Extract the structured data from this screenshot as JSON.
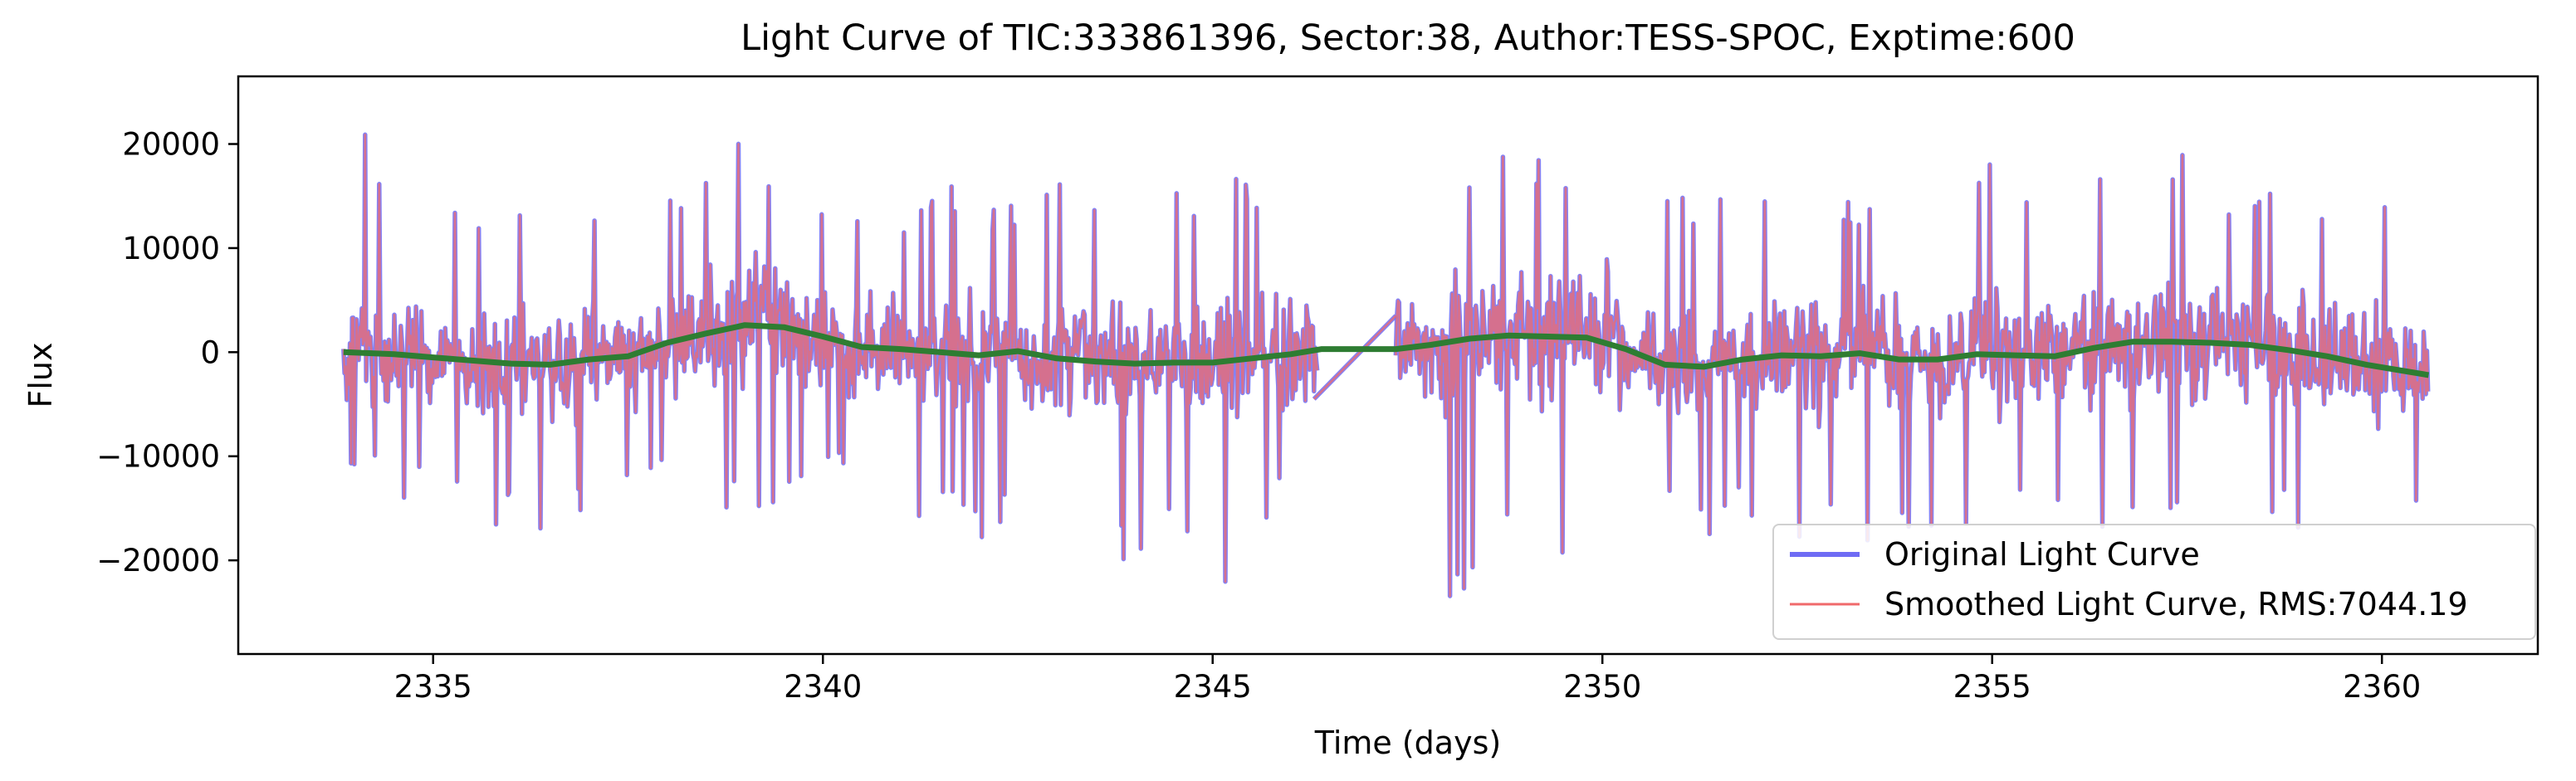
{
  "chart_data": {
    "type": "line",
    "title": "Light Curve of TIC:333861396, Sector:38, Author:TESS-SPOC, Exptime:600",
    "xlabel": "Time (days)",
    "ylabel": "Flux",
    "xlim": [
      2332.5,
      2362.0
    ],
    "ylim": [
      -29000,
      26500
    ],
    "xticks": [
      2335,
      2340,
      2345,
      2350,
      2355,
      2360
    ],
    "xtick_labels": [
      "2335",
      "2340",
      "2345",
      "2350",
      "2355",
      "2360"
    ],
    "yticks": [
      20000,
      10000,
      0,
      -10000,
      -20000
    ],
    "ytick_labels": [
      "20000",
      "10000",
      "0",
      "−10000",
      "−20000"
    ],
    "grid": false,
    "legend_position": "lower-right",
    "data_gap": [
      2346.4,
      2347.35
    ],
    "series": [
      {
        "name": "Original Light Curve",
        "color": "#6f6cf4",
        "x_range": [
          2333.85,
          2360.6
        ],
        "cadence_days": 0.00694,
        "noise_envelope": [
          [
            2333.9,
            -11000,
            12500
          ],
          [
            2334.0,
            -12000,
            24000
          ],
          [
            2334.5,
            -14000,
            18000
          ],
          [
            2335.0,
            -15000,
            13000
          ],
          [
            2335.5,
            -16000,
            16000
          ],
          [
            2336.0,
            -17500,
            14000
          ],
          [
            2336.5,
            -18000,
            17000
          ],
          [
            2337.0,
            -17000,
            15000
          ],
          [
            2337.5,
            -15000,
            14000
          ],
          [
            2338.0,
            -13000,
            17000
          ],
          [
            2338.5,
            -14000,
            20000
          ],
          [
            2339.0,
            -16000,
            23500
          ],
          [
            2339.5,
            -15000,
            19000
          ],
          [
            2340.0,
            -10000,
            14000
          ],
          [
            2340.5,
            -14000,
            16000
          ],
          [
            2341.0,
            -17000,
            15000
          ],
          [
            2341.5,
            -15500,
            17000
          ],
          [
            2342.0,
            -18000,
            16500
          ],
          [
            2342.5,
            -16000,
            14000
          ],
          [
            2343.0,
            -19000,
            16500
          ],
          [
            2343.5,
            -18000,
            15000
          ],
          [
            2344.0,
            -22000,
            17000
          ],
          [
            2344.5,
            -19000,
            16000
          ],
          [
            2345.0,
            -26000,
            17500
          ],
          [
            2345.5,
            -17000,
            17500
          ],
          [
            2346.0,
            -15000,
            19000
          ],
          [
            2346.35,
            -10000,
            17000
          ],
          [
            2347.4,
            -13000,
            16000
          ],
          [
            2347.8,
            -21000,
            13000
          ],
          [
            2348.2,
            -26500,
            17000
          ],
          [
            2348.6,
            -17000,
            21000
          ],
          [
            2349.0,
            -16000,
            22500
          ],
          [
            2349.5,
            -20000,
            19000
          ],
          [
            2350.0,
            -22000,
            17000
          ],
          [
            2350.5,
            -19000,
            16000
          ],
          [
            2351.0,
            -17000,
            15000
          ],
          [
            2351.5,
            -18000,
            15000
          ],
          [
            2352.0,
            -16000,
            17000
          ],
          [
            2352.5,
            -19000,
            17500
          ],
          [
            2353.0,
            -17000,
            15000
          ],
          [
            2353.5,
            -19000,
            16000
          ],
          [
            2354.0,
            -18000,
            18000
          ],
          [
            2354.5,
            -17000,
            17000
          ],
          [
            2355.0,
            -17500,
            19000
          ],
          [
            2355.5,
            -16000,
            17000
          ],
          [
            2356.0,
            -18000,
            15000
          ],
          [
            2356.5,
            -20000,
            18000
          ],
          [
            2357.0,
            -18000,
            19000
          ],
          [
            2357.5,
            -16000,
            19500
          ],
          [
            2358.0,
            -18000,
            17000
          ],
          [
            2358.5,
            -17000,
            18000
          ],
          [
            2359.0,
            -18000,
            17000
          ],
          [
            2359.35,
            -22500,
            17000
          ],
          [
            2359.8,
            -18000,
            16000
          ],
          [
            2360.2,
            -17000,
            15000
          ],
          [
            2360.6,
            -17000,
            15000
          ]
        ],
        "gap_connector": [
          [
            2346.3,
            -4500
          ],
          [
            2347.35,
            3500
          ]
        ]
      },
      {
        "name": "Smoothed Light Curve, RMS:7044.19",
        "color": "#f0696b",
        "note_visible": "follows the original light curve closely"
      },
      {
        "name": "",
        "color": "#2e7d32",
        "points": [
          [
            2333.85,
            0
          ],
          [
            2334.5,
            -200
          ],
          [
            2335.0,
            -500
          ],
          [
            2335.5,
            -800
          ],
          [
            2336.0,
            -1100
          ],
          [
            2336.5,
            -1200
          ],
          [
            2337.0,
            -700
          ],
          [
            2337.5,
            -400
          ],
          [
            2338.0,
            900
          ],
          [
            2338.5,
            1800
          ],
          [
            2339.0,
            2600
          ],
          [
            2339.5,
            2400
          ],
          [
            2340.0,
            1500
          ],
          [
            2340.5,
            500
          ],
          [
            2341.0,
            300
          ],
          [
            2341.5,
            0
          ],
          [
            2342.0,
            -300
          ],
          [
            2342.5,
            100
          ],
          [
            2343.0,
            -600
          ],
          [
            2343.5,
            -900
          ],
          [
            2344.0,
            -1100
          ],
          [
            2344.5,
            -1000
          ],
          [
            2345.0,
            -1000
          ],
          [
            2345.5,
            -600
          ],
          [
            2346.0,
            -200
          ],
          [
            2346.4,
            300
          ],
          [
            2347.35,
            300
          ],
          [
            2347.8,
            700
          ],
          [
            2348.3,
            1300
          ],
          [
            2348.8,
            1600
          ],
          [
            2349.3,
            1500
          ],
          [
            2349.8,
            1400
          ],
          [
            2350.3,
            300
          ],
          [
            2350.8,
            -1200
          ],
          [
            2351.3,
            -1400
          ],
          [
            2351.8,
            -700
          ],
          [
            2352.3,
            -300
          ],
          [
            2352.8,
            -400
          ],
          [
            2353.3,
            -100
          ],
          [
            2353.8,
            -700
          ],
          [
            2354.3,
            -700
          ],
          [
            2354.8,
            -200
          ],
          [
            2355.3,
            -300
          ],
          [
            2355.8,
            -400
          ],
          [
            2356.3,
            400
          ],
          [
            2356.8,
            1000
          ],
          [
            2357.3,
            1000
          ],
          [
            2357.8,
            900
          ],
          [
            2358.3,
            700
          ],
          [
            2358.8,
            200
          ],
          [
            2359.3,
            -400
          ],
          [
            2359.8,
            -1200
          ],
          [
            2360.6,
            -2200
          ]
        ]
      }
    ]
  }
}
